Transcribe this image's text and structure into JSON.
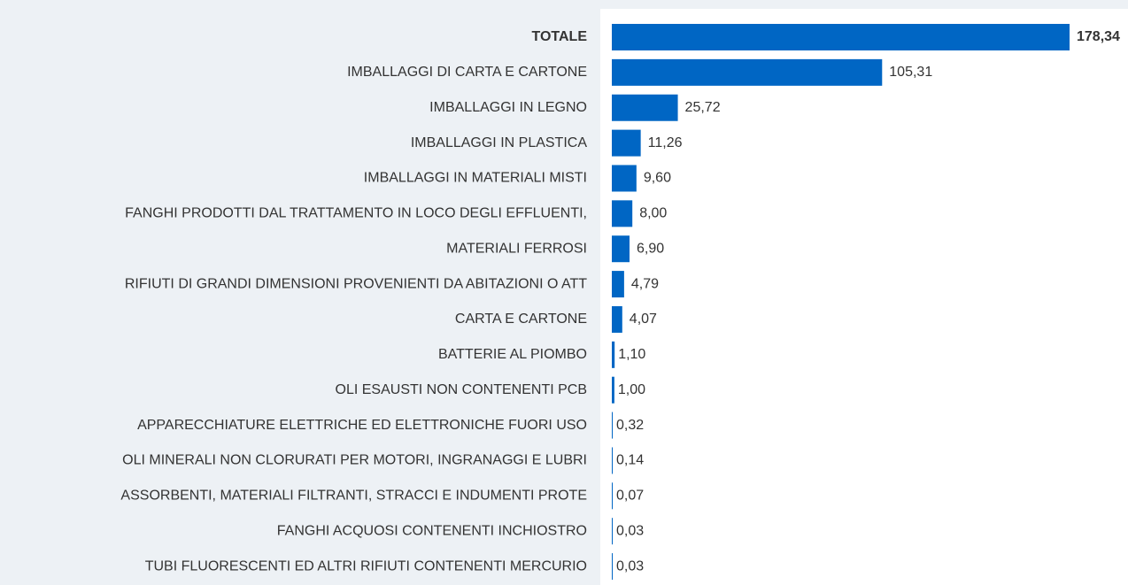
{
  "chart_data": {
    "type": "barh",
    "categories": [
      "TOTALE",
      "IMBALLAGGI DI CARTA E CARTONE",
      "IMBALLAGGI IN LEGNO",
      "IMBALLAGGI IN PLASTICA",
      "IMBALLAGGI IN MATERIALI MISTI",
      "FANGHI PRODOTTI DAL TRATTAMENTO IN LOCO DEGLI EFFLUENTI,",
      "MATERIALI FERROSI",
      "RIFIUTI DI GRANDI DIMENSIONI PROVENIENTI DA ABITAZIONI O ATT",
      "CARTA E CARTONE",
      "BATTERIE AL PIOMBO",
      "OLI ESAUSTI NON CONTENENTI PCB",
      "APPARECCHIATURE ELETTRICHE ED ELETTRONICHE FUORI USO",
      "OLI MINERALI NON CLORURATI PER MOTORI, INGRANAGGI E LUBRI",
      "ASSORBENTI, MATERIALI FILTRANTI, STRACCI E INDUMENTI PROTE",
      "FANGHI ACQUOSI CONTENENTI INCHIOSTRO",
      "TUBI FLUORESCENTI ED ALTRI RIFIUTI CONTENENTI MERCURIO"
    ],
    "values": [
      178.34,
      105.31,
      25.72,
      11.26,
      9.6,
      8.0,
      6.9,
      4.79,
      4.07,
      1.1,
      1.0,
      0.32,
      0.14,
      0.07,
      0.03,
      0.03
    ],
    "value_labels": [
      "178,34",
      "105,31",
      "25,72",
      "11,26",
      "9,60",
      "8,00",
      "6,90",
      "4,79",
      "4,07",
      "1,10",
      "1,00",
      "0,32",
      "0,14",
      "0,07",
      "0,03",
      "0,03"
    ],
    "color": "#0066c4"
  }
}
